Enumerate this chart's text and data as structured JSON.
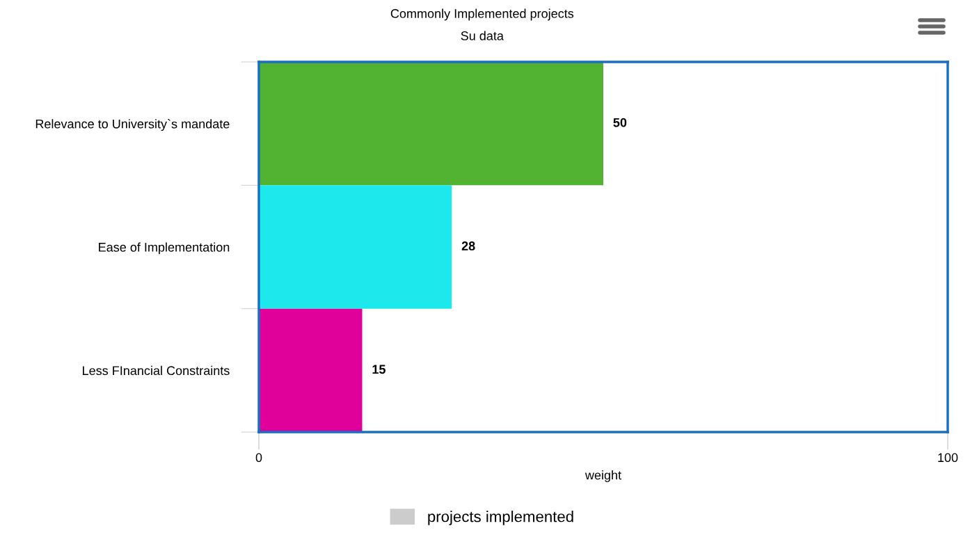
{
  "chart_data": {
    "type": "bar",
    "orientation": "horizontal",
    "title": "Commonly Implemented projects",
    "subtitle": "Su data",
    "xlabel": "weight",
    "categories": [
      "Relevance to University`s mandate",
      "Ease of Implementation",
      "Less FInancial Constraints"
    ],
    "series": [
      {
        "name": "projects implemented",
        "color": "#cccccc",
        "colors": [
          "#52b232",
          "#1de8ec",
          "#e0009a"
        ],
        "values": [
          50,
          28,
          15
        ]
      }
    ],
    "xlim": [
      0,
      100
    ],
    "xticks": [
      0,
      100
    ],
    "data_labels": true,
    "legend": "bottom",
    "grid": false
  }
}
